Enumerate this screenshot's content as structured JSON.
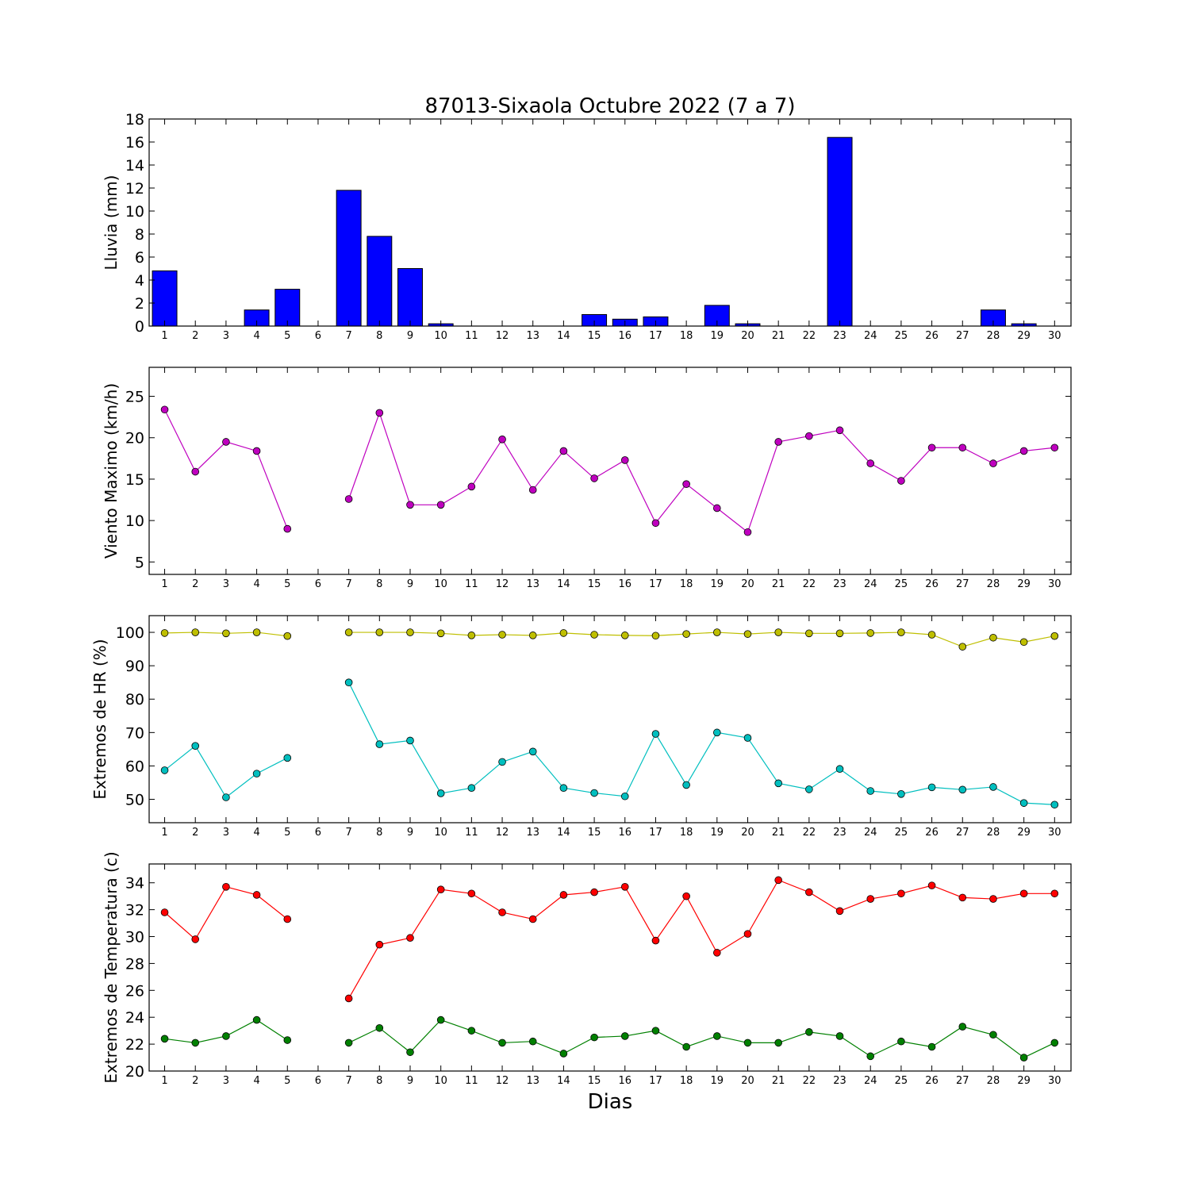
{
  "figure": {
    "title": "87013-Sixaola Octubre 2022  (7 a 7)",
    "xlabel": "Dias"
  },
  "chart_data": [
    {
      "type": "bar",
      "ylabel": "Lluvia (mm)",
      "ylim": [
        0,
        18
      ],
      "yticks": [
        0,
        2,
        4,
        6,
        8,
        10,
        12,
        14,
        16,
        18
      ],
      "categories": [
        1,
        2,
        3,
        4,
        5,
        6,
        7,
        8,
        9,
        10,
        11,
        12,
        13,
        14,
        15,
        16,
        17,
        18,
        19,
        20,
        21,
        22,
        23,
        24,
        25,
        26,
        27,
        28,
        29,
        30
      ],
      "series": [
        {
          "color": "#0000ff",
          "values": [
            4.8,
            0,
            0,
            1.4,
            3.2,
            null,
            11.8,
            7.8,
            5.0,
            0.2,
            0,
            0,
            0,
            0,
            1.0,
            0.6,
            0.8,
            0,
            1.8,
            0.2,
            0,
            0,
            16.4,
            0,
            0,
            0,
            0,
            1.4,
            0.2,
            0
          ]
        }
      ]
    },
    {
      "type": "line",
      "ylabel": "Viento Maximo (km/h)",
      "ylim": [
        3.5,
        28.5
      ],
      "yticks": [
        5,
        10,
        15,
        20,
        25
      ],
      "categories": [
        1,
        2,
        3,
        4,
        5,
        6,
        7,
        8,
        9,
        10,
        11,
        12,
        13,
        14,
        15,
        16,
        17,
        18,
        19,
        20,
        21,
        22,
        23,
        24,
        25,
        26,
        27,
        28,
        29,
        30
      ],
      "series": [
        {
          "color": "#bf00bf",
          "values": [
            23.4,
            15.9,
            19.5,
            18.4,
            9.0,
            null,
            12.6,
            23.0,
            11.9,
            11.9,
            14.1,
            19.8,
            13.7,
            18.4,
            15.1,
            17.3,
            9.7,
            14.4,
            11.5,
            8.6,
            19.5,
            20.2,
            20.9,
            16.9,
            14.8,
            18.8,
            18.8,
            16.9,
            18.4,
            18.8
          ]
        }
      ]
    },
    {
      "type": "line",
      "ylabel": "Extremos de HR (%)",
      "ylim": [
        43,
        105
      ],
      "yticks": [
        50,
        60,
        70,
        80,
        90,
        100
      ],
      "categories": [
        1,
        2,
        3,
        4,
        5,
        6,
        7,
        8,
        9,
        10,
        11,
        12,
        13,
        14,
        15,
        16,
        17,
        18,
        19,
        20,
        21,
        22,
        23,
        24,
        25,
        26,
        27,
        28,
        29,
        30
      ],
      "series": [
        {
          "color": "#bfbf00",
          "values": [
            99.8,
            100,
            99.7,
            100,
            98.9,
            null,
            100,
            100,
            100,
            99.7,
            99.1,
            99.3,
            99.1,
            99.8,
            99.3,
            99.1,
            99.0,
            99.5,
            100,
            99.5,
            100,
            99.7,
            99.7,
            99.8,
            100,
            99.3,
            95.7,
            98.4,
            97.1,
            98.9
          ]
        },
        {
          "color": "#00bfbf",
          "values": [
            58.7,
            66.0,
            50.6,
            57.7,
            62.4,
            null,
            85.0,
            66.5,
            67.6,
            51.8,
            53.4,
            61.2,
            64.3,
            53.4,
            51.9,
            50.9,
            69.6,
            54.3,
            70.0,
            68.4,
            54.8,
            53.0,
            59.1,
            52.5,
            51.6,
            53.6,
            52.9,
            53.7,
            48.9,
            48.4
          ]
        }
      ]
    },
    {
      "type": "line",
      "ylabel": "Extremos de Temperatura (c)",
      "ylim": [
        20,
        35.4
      ],
      "yticks": [
        20,
        22,
        24,
        26,
        28,
        30,
        32,
        34
      ],
      "categories": [
        1,
        2,
        3,
        4,
        5,
        6,
        7,
        8,
        9,
        10,
        11,
        12,
        13,
        14,
        15,
        16,
        17,
        18,
        19,
        20,
        21,
        22,
        23,
        24,
        25,
        26,
        27,
        28,
        29,
        30
      ],
      "series": [
        {
          "color": "#ff0000",
          "values": [
            31.8,
            29.8,
            33.7,
            33.1,
            31.3,
            null,
            25.4,
            29.4,
            29.9,
            33.5,
            33.2,
            31.8,
            31.3,
            33.1,
            33.3,
            33.7,
            29.7,
            33.0,
            28.8,
            30.2,
            34.2,
            33.3,
            31.9,
            32.8,
            33.2,
            33.8,
            32.9,
            32.8,
            33.2,
            33.2
          ]
        },
        {
          "color": "#008000",
          "values": [
            22.4,
            22.1,
            22.6,
            23.8,
            22.3,
            null,
            22.1,
            23.2,
            21.4,
            23.8,
            23.0,
            22.1,
            22.2,
            21.3,
            22.5,
            22.6,
            23.0,
            21.8,
            22.6,
            22.1,
            22.1,
            22.9,
            22.6,
            21.1,
            22.2,
            21.8,
            23.3,
            22.7,
            21.0,
            22.1
          ]
        }
      ]
    }
  ]
}
